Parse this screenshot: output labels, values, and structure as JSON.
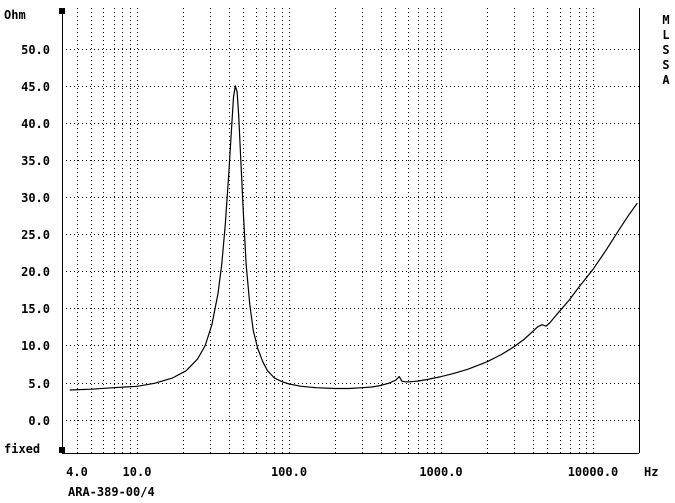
{
  "chart_data": {
    "type": "line",
    "title": "",
    "ylabel": "Ohm",
    "xlabel": "Hz",
    "caption": "ARA-389-00/4",
    "bottom_left_label": "fixed",
    "side_label": [
      "M",
      "L",
      "S",
      "S",
      "A"
    ],
    "x_scale": "log",
    "xlim": [
      3.2,
      20000
    ],
    "ylim": [
      -4.5,
      55.5
    ],
    "grid": true,
    "x_ticks": [
      {
        "value": 4,
        "label": "4.0"
      },
      {
        "value": 10,
        "label": "10.0"
      },
      {
        "value": 100,
        "label": "100.0"
      },
      {
        "value": 1000,
        "label": "1000.0"
      },
      {
        "value": 10000,
        "label": "10000.0"
      }
    ],
    "y_ticks": [
      {
        "value": 0,
        "label": "0.0"
      },
      {
        "value": 5,
        "label": "5.0"
      },
      {
        "value": 10,
        "label": "10.0"
      },
      {
        "value": 15,
        "label": "15.0"
      },
      {
        "value": 20,
        "label": "20.0"
      },
      {
        "value": 25,
        "label": "25.0"
      },
      {
        "value": 30,
        "label": "30.0"
      },
      {
        "value": 35,
        "label": "35.0"
      },
      {
        "value": 40,
        "label": "40.0"
      },
      {
        "value": 45,
        "label": "45.0"
      },
      {
        "value": 50,
        "label": "50.0"
      }
    ],
    "series": [
      {
        "x": [
          3.6,
          5,
          7,
          10,
          13,
          17,
          21,
          25,
          28,
          31,
          34,
          36,
          38,
          40,
          41.5,
          43,
          44.2,
          45.4,
          46.5,
          48,
          50,
          52,
          55,
          58,
          62,
          67,
          72,
          80,
          90,
          100,
          120,
          150,
          200,
          250,
          300,
          350,
          400,
          450,
          500,
          530,
          550,
          580,
          620,
          700,
          800,
          1000,
          1200,
          1500,
          2000,
          2500,
          3000,
          3500,
          4000,
          4300,
          4600,
          4900,
          5200,
          5500,
          6000,
          7000,
          8000,
          10000,
          12000,
          15000,
          17000,
          19500
        ],
        "y": [
          4.0,
          4.1,
          4.3,
          4.5,
          4.9,
          5.6,
          6.6,
          8.2,
          10.0,
          12.8,
          17.0,
          21.0,
          26.5,
          33.0,
          38.5,
          43.5,
          45.0,
          44.2,
          41.0,
          35.0,
          27.5,
          21.0,
          15.5,
          12.0,
          9.6,
          7.8,
          6.6,
          5.6,
          5.1,
          4.8,
          4.5,
          4.3,
          4.2,
          4.2,
          4.3,
          4.4,
          4.6,
          4.9,
          5.3,
          5.8,
          5.2,
          5.1,
          5.1,
          5.2,
          5.4,
          5.8,
          6.2,
          6.8,
          7.8,
          8.8,
          9.8,
          10.8,
          11.9,
          12.5,
          12.8,
          12.6,
          13.1,
          13.7,
          14.6,
          16.2,
          17.8,
          20.3,
          22.7,
          25.8,
          27.5,
          29.2
        ]
      }
    ]
  }
}
